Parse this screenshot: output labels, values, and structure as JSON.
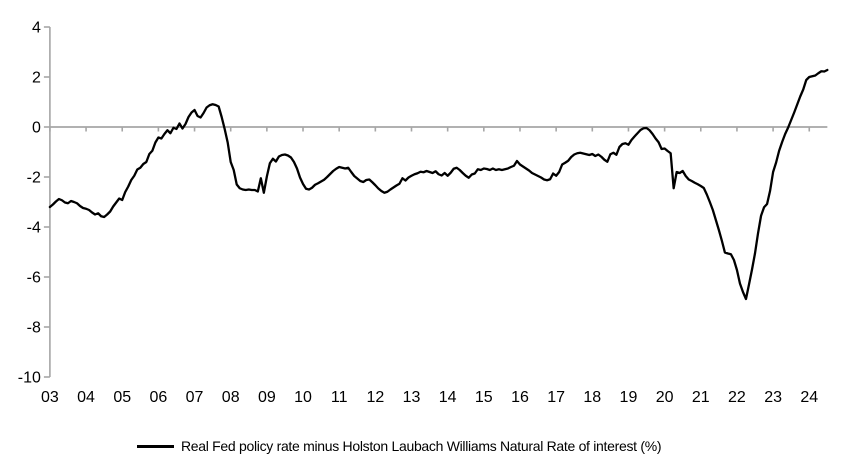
{
  "legend": {
    "label": "Real Fed policy rate minus Holston Laubach Williams Natural Rate of interest (%)"
  },
  "colors": {
    "series": "#000000",
    "axis": "#a6a6a6",
    "text": "#000000",
    "background": "#ffffff"
  },
  "chart_data": {
    "type": "line",
    "title": "",
    "xlabel": "",
    "ylabel": "",
    "grid": "zero-axis-line-only",
    "legend_position": "bottom-center",
    "ylim": [
      -10,
      4
    ],
    "y_ticks": [
      4,
      2,
      0,
      -2,
      -4,
      -6,
      -8,
      -10
    ],
    "y_tick_labels": [
      "4",
      "2",
      "0",
      "-2",
      "-4",
      "-6",
      "-8",
      "-10"
    ],
    "xlim_years": [
      2003.0,
      2024.5
    ],
    "x_tick_years": [
      2003,
      2004,
      2005,
      2006,
      2007,
      2008,
      2009,
      2010,
      2011,
      2012,
      2013,
      2014,
      2015,
      2016,
      2017,
      2018,
      2019,
      2020,
      2021,
      2022,
      2023,
      2024
    ],
    "x_tick_labels": [
      "03",
      "04",
      "05",
      "06",
      "07",
      "08",
      "09",
      "10",
      "11",
      "12",
      "13",
      "14",
      "15",
      "16",
      "17",
      "18",
      "19",
      "20",
      "21",
      "22",
      "23",
      "24"
    ],
    "series": [
      {
        "name": "Real Fed policy rate minus Holston Laubach Williams Natural Rate of interest (%)",
        "color": "#000000",
        "frequency": "monthly",
        "x_start": 2003.0,
        "x_step_years": 0.0833333,
        "values": [
          -3.2,
          -3.1,
          -2.98,
          -2.88,
          -2.93,
          -3.02,
          -3.05,
          -2.96,
          -3.0,
          -3.05,
          -3.16,
          -3.24,
          -3.27,
          -3.32,
          -3.42,
          -3.5,
          -3.45,
          -3.57,
          -3.6,
          -3.5,
          -3.38,
          -3.18,
          -3.02,
          -2.86,
          -2.92,
          -2.6,
          -2.38,
          -2.12,
          -1.95,
          -1.7,
          -1.63,
          -1.48,
          -1.4,
          -1.08,
          -0.95,
          -0.62,
          -0.42,
          -0.46,
          -0.28,
          -0.13,
          -0.25,
          -0.03,
          -0.08,
          0.14,
          -0.06,
          0.12,
          0.4,
          0.58,
          0.68,
          0.44,
          0.38,
          0.56,
          0.78,
          0.87,
          0.91,
          0.88,
          0.82,
          0.4,
          -0.08,
          -0.62,
          -1.4,
          -1.72,
          -2.3,
          -2.45,
          -2.5,
          -2.52,
          -2.5,
          -2.52,
          -2.52,
          -2.58,
          -2.05,
          -2.63,
          -1.98,
          -1.45,
          -1.27,
          -1.38,
          -1.18,
          -1.12,
          -1.1,
          -1.14,
          -1.22,
          -1.4,
          -1.66,
          -2.02,
          -2.28,
          -2.47,
          -2.5,
          -2.43,
          -2.31,
          -2.25,
          -2.18,
          -2.11,
          -2.0,
          -1.88,
          -1.76,
          -1.67,
          -1.6,
          -1.63,
          -1.66,
          -1.63,
          -1.8,
          -1.96,
          -2.06,
          -2.16,
          -2.2,
          -2.12,
          -2.1,
          -2.21,
          -2.33,
          -2.46,
          -2.56,
          -2.63,
          -2.59,
          -2.5,
          -2.42,
          -2.34,
          -2.27,
          -2.05,
          -2.14,
          -2.02,
          -1.95,
          -1.89,
          -1.85,
          -1.79,
          -1.81,
          -1.76,
          -1.8,
          -1.84,
          -1.77,
          -1.89,
          -1.94,
          -1.84,
          -1.95,
          -1.83,
          -1.67,
          -1.63,
          -1.72,
          -1.84,
          -1.95,
          -2.03,
          -1.9,
          -1.86,
          -1.69,
          -1.72,
          -1.66,
          -1.68,
          -1.72,
          -1.66,
          -1.72,
          -1.69,
          -1.72,
          -1.69,
          -1.66,
          -1.6,
          -1.55,
          -1.36,
          -1.5,
          -1.58,
          -1.66,
          -1.74,
          -1.84,
          -1.9,
          -1.96,
          -2.02,
          -2.1,
          -2.13,
          -2.09,
          -1.86,
          -1.95,
          -1.8,
          -1.5,
          -1.43,
          -1.35,
          -1.2,
          -1.1,
          -1.05,
          -1.03,
          -1.06,
          -1.09,
          -1.12,
          -1.08,
          -1.16,
          -1.1,
          -1.19,
          -1.31,
          -1.39,
          -1.09,
          -1.03,
          -1.11,
          -0.8,
          -0.68,
          -0.65,
          -0.71,
          -0.52,
          -0.38,
          -0.25,
          -0.12,
          -0.05,
          -0.04,
          -0.13,
          -0.28,
          -0.46,
          -0.61,
          -0.88,
          -0.86,
          -0.96,
          -1.05,
          -2.45,
          -1.8,
          -1.84,
          -1.76,
          -1.96,
          -2.1,
          -2.16,
          -2.23,
          -2.29,
          -2.36,
          -2.44,
          -2.7,
          -3.0,
          -3.32,
          -3.72,
          -4.12,
          -4.55,
          -5.02,
          -5.06,
          -5.09,
          -5.32,
          -5.72,
          -6.26,
          -6.6,
          -6.88,
          -6.3,
          -5.7,
          -5.05,
          -4.25,
          -3.55,
          -3.21,
          -3.08,
          -2.55,
          -1.8,
          -1.42,
          -0.95,
          -0.6,
          -0.28,
          -0.02,
          0.28,
          0.58,
          0.9,
          1.22,
          1.5,
          1.88,
          2.0,
          2.03,
          2.06,
          2.15,
          2.23,
          2.22,
          2.28
        ]
      }
    ]
  }
}
